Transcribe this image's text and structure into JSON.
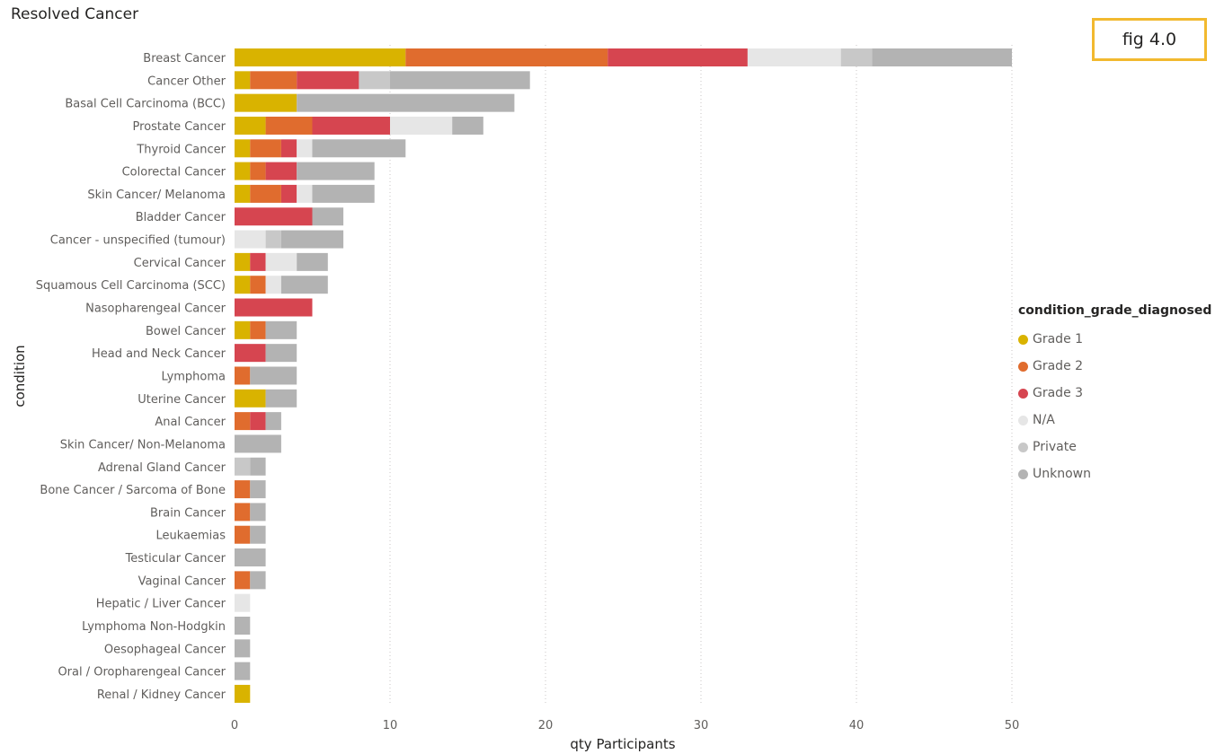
{
  "fig_label": "fig 4.0",
  "chart_data": {
    "type": "bar",
    "orientation": "horizontal",
    "stacked": true,
    "title": "Resolved Cancer",
    "xlabel": "qty Participants",
    "ylabel": "condition",
    "xlim": [
      0,
      50
    ],
    "xticks": [
      0,
      10,
      20,
      30,
      40,
      50
    ],
    "grid": "vertical-dotted",
    "legend": {
      "title": "condition_grade_diagnosed",
      "position": "right"
    },
    "categories": [
      "Breast Cancer",
      "Cancer Other",
      "Basal Cell Carcinoma (BCC)",
      "Prostate Cancer",
      "Thyroid Cancer",
      "Colorectal Cancer",
      "Skin Cancer/ Melanoma",
      "Bladder Cancer",
      "Cancer - unspecified (tumour)",
      "Cervical Cancer",
      "Squamous Cell Carcinoma (SCC)",
      "Nasopharengeal Cancer",
      "Bowel Cancer",
      "Head and Neck Cancer",
      "Lymphoma",
      "Uterine Cancer",
      "Anal Cancer",
      "Skin Cancer/ Non-Melanoma",
      "Adrenal Gland Cancer",
      "Bone Cancer / Sarcoma of Bone",
      "Brain Cancer",
      "Leukaemias",
      "Testicular Cancer",
      "Vaginal Cancer",
      "Hepatic / Liver Cancer",
      "Lymphoma Non-Hodgkin",
      "Oesophageal Cancer",
      "Oral / Oropharengeal Cancer",
      "Renal / Kidney Cancer"
    ],
    "series": [
      {
        "name": "Grade 1",
        "color": "#D9B300",
        "values": [
          11,
          1,
          4,
          2,
          1,
          1,
          1,
          0,
          0,
          1,
          1,
          0,
          1,
          0,
          0,
          2,
          0,
          0,
          0,
          0,
          0,
          0,
          0,
          0,
          0,
          0,
          0,
          0,
          1
        ]
      },
      {
        "name": "Grade 2",
        "color": "#E06C2E",
        "values": [
          13,
          3,
          0,
          3,
          2,
          1,
          2,
          0,
          0,
          0,
          1,
          0,
          1,
          0,
          1,
          0,
          1,
          0,
          0,
          1,
          1,
          1,
          0,
          1,
          0,
          0,
          0,
          0,
          0
        ]
      },
      {
        "name": "Grade 3",
        "color": "#D64550",
        "values": [
          9,
          4,
          0,
          5,
          1,
          2,
          1,
          5,
          0,
          1,
          0,
          5,
          0,
          2,
          0,
          0,
          1,
          0,
          0,
          0,
          0,
          0,
          0,
          0,
          0,
          0,
          0,
          0,
          0
        ]
      },
      {
        "name": "N/A",
        "color": "#E6E6E6",
        "values": [
          6,
          0,
          0,
          4,
          1,
          0,
          1,
          0,
          2,
          2,
          1,
          0,
          0,
          0,
          0,
          0,
          0,
          0,
          0,
          0,
          0,
          0,
          0,
          0,
          1,
          0,
          0,
          0,
          0
        ]
      },
      {
        "name": "Private",
        "color": "#C8C8C8",
        "values": [
          2,
          2,
          0,
          0,
          0,
          0,
          0,
          0,
          1,
          0,
          0,
          0,
          0,
          0,
          0,
          0,
          0,
          0,
          1,
          0,
          0,
          0,
          0,
          0,
          0,
          0,
          0,
          0,
          0
        ]
      },
      {
        "name": "Unknown",
        "color": "#B3B3B3",
        "values": [
          9,
          9,
          14,
          2,
          6,
          5,
          4,
          2,
          4,
          2,
          3,
          0,
          2,
          2,
          3,
          2,
          1,
          3,
          1,
          1,
          1,
          1,
          2,
          1,
          0,
          1,
          1,
          1,
          0
        ]
      }
    ]
  }
}
